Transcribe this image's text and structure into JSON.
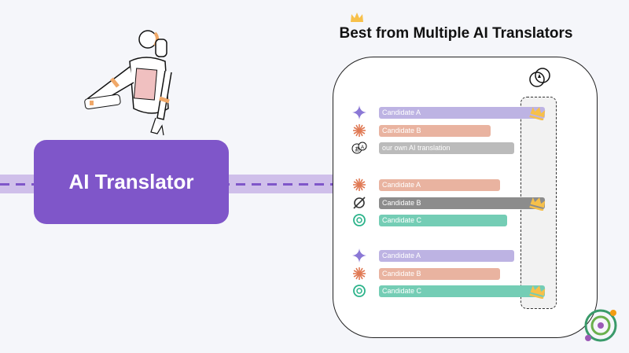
{
  "translator_label": "AI Translator",
  "title": "Best from Multiple AI Translators",
  "groups": [
    {
      "rows": [
        {
          "label": "Candidate A",
          "icon": "gemini-icon",
          "color": "#bdb3e3",
          "best": true
        },
        {
          "label": "Candidate B",
          "icon": "claude-icon",
          "color": "#e9b3a0",
          "best": false
        },
        {
          "label": "our own AI translation",
          "icon": "translate-bubbles-icon",
          "color": "#bbbbbb",
          "best": false
        }
      ]
    },
    {
      "rows": [
        {
          "label": "Candidate A",
          "icon": "claude-icon",
          "color": "#e9b3a0",
          "best": false
        },
        {
          "label": "Candidate B",
          "icon": "grok-icon",
          "color": "#8c8c8c",
          "best": true
        },
        {
          "label": "Candidate C",
          "icon": "openai-icon",
          "color": "#74cdb5",
          "best": false
        }
      ]
    },
    {
      "rows": [
        {
          "label": "Candidate A",
          "icon": "gemini-icon",
          "color": "#bdb3e3",
          "best": false
        },
        {
          "label": "Candidate B",
          "icon": "claude-icon",
          "color": "#e9b3a0",
          "best": false
        },
        {
          "label": "Candidate C",
          "icon": "openai-icon",
          "color": "#74cdb5",
          "best": true
        }
      ]
    }
  ],
  "colors": {
    "accent": "#7f56c9",
    "band": "#cfbfea",
    "crown": "#f7c04a"
  }
}
